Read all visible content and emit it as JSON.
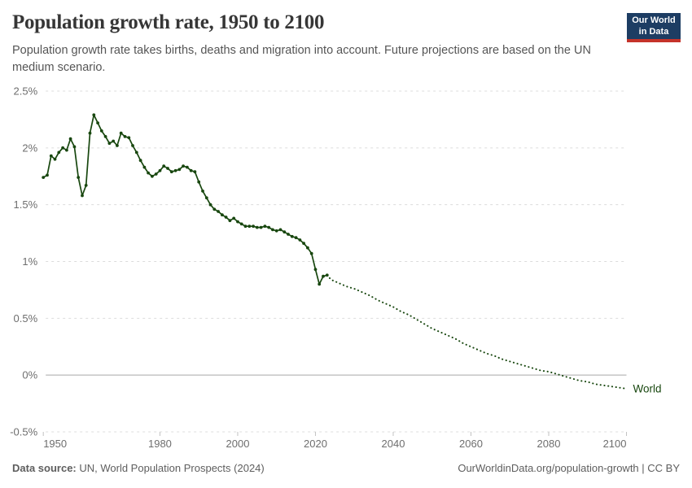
{
  "header": {
    "title": "Population growth rate, 1950 to 2100",
    "subtitle": "Population growth rate takes births, deaths and migration into account. Future projections are based on the UN medium scenario."
  },
  "logo": {
    "line1": "Our World",
    "line2": "in Data",
    "bg_color": "#1d3d63",
    "accent_color": "#c5332a",
    "text_color": "#ffffff"
  },
  "chart_data": {
    "type": "line",
    "title": "Population growth rate, 1950 to 2100",
    "unit": "%",
    "xlabel": "",
    "ylabel": "",
    "xlim": [
      1950,
      2100
    ],
    "ylim": [
      -0.5,
      2.5
    ],
    "grid": "horizontal-dashed",
    "legend_position": "end-of-line",
    "colors": {
      "series": "#18470f",
      "gridline": "#dcdcdc",
      "zero_line": "#a9a9a9",
      "tick_label": "#6e6e6e",
      "tick_mark": "#c2c2c2"
    },
    "y_ticks": [
      {
        "value": 2.5,
        "label": "2.5%"
      },
      {
        "value": 2,
        "label": "2%"
      },
      {
        "value": 1.5,
        "label": "1.5%"
      },
      {
        "value": 1,
        "label": "1%"
      },
      {
        "value": 0.5,
        "label": "0.5%"
      },
      {
        "value": 0,
        "label": "0%"
      },
      {
        "value": -0.5,
        "label": "-0.5%"
      }
    ],
    "x_ticks": [
      {
        "value": 1950,
        "label": "1950"
      },
      {
        "value": 1980,
        "label": "1980"
      },
      {
        "value": 2000,
        "label": "2000"
      },
      {
        "value": 2020,
        "label": "2020"
      },
      {
        "value": 2040,
        "label": "2040"
      },
      {
        "value": 2060,
        "label": "2060"
      },
      {
        "value": 2080,
        "label": "2080"
      },
      {
        "value": 2100,
        "label": "2100"
      }
    ],
    "series": [
      {
        "name": "World",
        "end_label": "World",
        "color": "#18470f",
        "historical": {
          "style": "solid-with-markers",
          "start_year": 1950,
          "values": [
            1.74,
            1.76,
            1.93,
            1.9,
            1.96,
            2.0,
            1.98,
            2.08,
            2.01,
            1.74,
            1.58,
            1.67,
            2.13,
            2.29,
            2.22,
            2.15,
            2.1,
            2.04,
            2.06,
            2.02,
            2.13,
            2.1,
            2.09,
            2.02,
            1.96,
            1.89,
            1.83,
            1.78,
            1.75,
            1.77,
            1.8,
            1.84,
            1.82,
            1.79,
            1.8,
            1.81,
            1.84,
            1.83,
            1.8,
            1.79,
            1.7,
            1.62,
            1.56,
            1.5,
            1.46,
            1.44,
            1.41,
            1.39,
            1.36,
            1.38,
            1.35,
            1.33,
            1.31,
            1.31,
            1.31,
            1.3,
            1.3,
            1.31,
            1.3,
            1.28,
            1.27,
            1.28,
            1.26,
            1.24,
            1.22,
            1.21,
            1.19,
            1.16,
            1.12,
            1.07,
            0.93,
            0.8,
            0.87,
            0.88
          ]
        },
        "projection": {
          "style": "dotted",
          "scenario": "UN medium",
          "years": [
            2024,
            2026,
            2028,
            2030,
            2032,
            2034,
            2036,
            2038,
            2040,
            2042,
            2044,
            2046,
            2048,
            2050,
            2052,
            2054,
            2056,
            2058,
            2060,
            2062,
            2064,
            2066,
            2068,
            2070,
            2072,
            2074,
            2076,
            2078,
            2080,
            2082,
            2084,
            2086,
            2088,
            2090,
            2092,
            2094,
            2096,
            2098,
            2100
          ],
          "values": [
            0.84,
            0.81,
            0.78,
            0.76,
            0.73,
            0.7,
            0.66,
            0.63,
            0.6,
            0.56,
            0.53,
            0.49,
            0.45,
            0.41,
            0.38,
            0.35,
            0.32,
            0.28,
            0.25,
            0.22,
            0.19,
            0.17,
            0.14,
            0.12,
            0.1,
            0.08,
            0.06,
            0.04,
            0.03,
            0.01,
            -0.01,
            -0.03,
            -0.05,
            -0.06,
            -0.08,
            -0.09,
            -0.1,
            -0.11,
            -0.12
          ]
        }
      }
    ]
  },
  "footer": {
    "source_label": "Data source:",
    "source_text": " UN, World Population Prospects (2024)",
    "credit": "OurWorldinData.org/population-growth | CC BY"
  }
}
